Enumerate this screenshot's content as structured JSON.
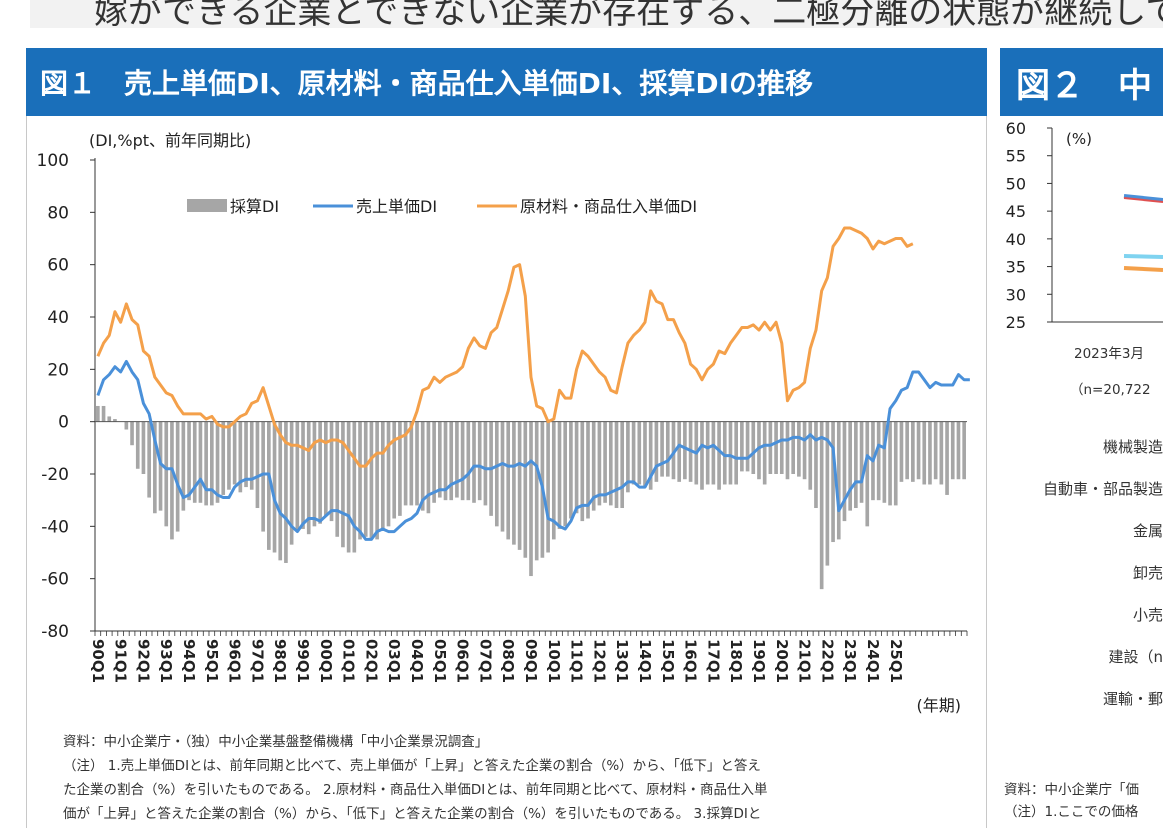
{
  "page": {
    "top_text": "嫁ができる企業とできない企業が存在する、二極分離の状態が継続して",
    "fig1_title": "図１　売上単価DI、原材料・商品仕入単価DI、採算DIの推移",
    "fig2_title": "図２　中"
  },
  "fig1": {
    "source": "資料：中小企業庁・（独）中小企業基盤整備機構「中小企業景況調査」",
    "note_lines": [
      "（注） 1.売上単価DIとは、前年同期と比べて、売上単価が「上昇」と答えた企業の割合（%）から、「低下」と答え",
      "た企業の割合（%）を引いたものである。 2.原材料・商品仕入単価DIとは、前年同期と比べて、原材料・商品仕入単",
      "価が「上昇」と答えた企業の割合（%）から、「低下」と答えた企業の割合（%）を引いたものである。 3.採算DIと"
    ]
  },
  "fig2": {
    "unit": "(%)",
    "y_ticks": [
      "60",
      "55",
      "50",
      "45",
      "40",
      "35",
      "30",
      "25"
    ],
    "x_label": "2023年3月",
    "n_label": "（n=20,722",
    "categories": [
      "機械製造",
      "自動車・部品製造",
      "金属",
      "卸売",
      "小売",
      "建設（n",
      "運輸・郵"
    ],
    "source": "資料：中小企業庁「価",
    "note": "（注）1.ここでの価格"
  },
  "colors": {
    "header": "#1a6fba",
    "saisan": "#a6a6a6",
    "uriage": "#4a90d9",
    "genzairyo": "#f4a04a"
  },
  "chart_data": {
    "type": "bar+line",
    "ylabel": "(DI,%pt、前年同期比)",
    "xlabel": "(年期)",
    "ylim": [
      -80,
      100
    ],
    "yticks": [
      100,
      80,
      60,
      40,
      20,
      0,
      -20,
      -40,
      -60,
      -80
    ],
    "x_start": "1990Q1",
    "x_tick_labels": [
      "90Q1",
      "91Q1",
      "92Q1",
      "93Q1",
      "94Q1",
      "95Q1",
      "96Q1",
      "97Q1",
      "98Q1",
      "99Q1",
      "00Q1",
      "01Q1",
      "02Q1",
      "03Q1",
      "04Q1",
      "05Q1",
      "06Q1",
      "07Q1",
      "08Q1",
      "09Q1",
      "10Q1",
      "11Q1",
      "12Q1",
      "13Q1",
      "14Q1",
      "15Q1",
      "16Q1",
      "17Q1",
      "18Q1",
      "19Q1",
      "20Q1",
      "21Q1",
      "22Q1",
      "23Q1",
      "24Q1",
      "25Q1"
    ],
    "legend_position": "top-center",
    "series": [
      {
        "name": "採算DI",
        "type": "bar",
        "values": [
          6,
          6,
          2,
          1,
          0,
          -3,
          -9,
          -18,
          -20,
          -29,
          -35,
          -34,
          -40,
          -45,
          -42,
          -34,
          -30,
          -31,
          -31,
          -32,
          -32,
          -31,
          -28,
          -26,
          -24,
          -27,
          -25,
          -26,
          -33,
          -42,
          -49,
          -50,
          -53,
          -54,
          -47,
          -42,
          -41,
          -43,
          -40,
          -39,
          -36,
          -38,
          -44,
          -48,
          -50,
          -50,
          -45,
          -44,
          -45,
          -45,
          -41,
          -40,
          -37,
          -36,
          -32,
          -32,
          -32,
          -34,
          -35,
          -31,
          -29,
          -30,
          -30,
          -29,
          -30,
          -30,
          -31,
          -30,
          -32,
          -36,
          -40,
          -42,
          -45,
          -47,
          -49,
          -52,
          -59,
          -53,
          -52,
          -50,
          -45,
          -41,
          -40,
          -37,
          -35,
          -38,
          -37,
          -34,
          -32,
          -31,
          -32,
          -33,
          -33,
          -27,
          -24,
          -24,
          -25,
          -26,
          -23,
          -21,
          -21,
          -22,
          -23,
          -22,
          -23,
          -24,
          -26,
          -24,
          -24,
          -26,
          -24,
          -24,
          -24,
          -19,
          -19,
          -20,
          -22,
          -24,
          -20,
          -20,
          -20,
          -22,
          -20,
          -21,
          -22,
          -26,
          -33,
          -64,
          -55,
          -46,
          -45,
          -38,
          -34,
          -33,
          -31,
          -40,
          -30,
          -30,
          -31,
          -32,
          -32,
          -23,
          -22,
          -23,
          -22,
          -24,
          -24,
          -22,
          -24,
          -28,
          -22,
          -22,
          -22
        ]
      },
      {
        "name": "売上単価DI",
        "type": "line",
        "values": [
          10,
          16,
          18,
          21,
          19,
          23,
          19,
          16,
          7,
          3,
          -7,
          -16,
          -18,
          -18,
          -24,
          -29,
          -28,
          -25,
          -22,
          -26,
          -26,
          -28,
          -29,
          -29,
          -25,
          -23,
          -22,
          -22,
          -21,
          -20,
          -20,
          -30,
          -35,
          -37,
          -40,
          -42,
          -39,
          -37,
          -37,
          -38,
          -36,
          -34,
          -34,
          -35,
          -36,
          -40,
          -42,
          -45,
          -45,
          -42,
          -41,
          -42,
          -42,
          -40,
          -38,
          -37,
          -35,
          -30,
          -28,
          -27,
          -26,
          -26,
          -24,
          -23,
          -22,
          -20,
          -17,
          -17,
          -18,
          -18,
          -17,
          -16,
          -17,
          -17,
          -16,
          -17,
          -15,
          -17,
          -25,
          -37,
          -38,
          -40,
          -41,
          -38,
          -33,
          -32,
          -32,
          -29,
          -28,
          -28,
          -27,
          -26,
          -25,
          -23,
          -23,
          -25,
          -25,
          -21,
          -17,
          -16,
          -15,
          -12,
          -9,
          -10,
          -11,
          -12,
          -9,
          -10,
          -9,
          -11,
          -13,
          -13,
          -14,
          -14,
          -14,
          -12,
          -10,
          -9,
          -9,
          -8,
          -7,
          -7,
          -6,
          -6,
          -7,
          -5,
          -7,
          -6,
          -7,
          -10,
          -34,
          -30,
          -26,
          -23,
          -23,
          -13,
          -15,
          -9,
          -10,
          5,
          8,
          12,
          13,
          19,
          19,
          16,
          13,
          15,
          14,
          14,
          14,
          18,
          16,
          16
        ]
      },
      {
        "name": "原材料・商品仕入単価DI",
        "type": "line",
        "values": [
          25,
          30,
          33,
          42,
          38,
          45,
          39,
          37,
          27,
          25,
          17,
          14,
          11,
          10,
          6,
          3,
          3,
          3,
          3,
          1,
          2,
          -1,
          -2,
          -2,
          0,
          2,
          3,
          7,
          8,
          13,
          6,
          -1,
          -5,
          -8,
          -9,
          -9,
          -10,
          -11,
          -8,
          -7,
          -8,
          -7,
          -7,
          -8,
          -11,
          -14,
          -17,
          -17,
          -14,
          -12,
          -12,
          -9,
          -7,
          -6,
          -5,
          -2,
          4,
          12,
          13,
          17,
          15,
          17,
          18,
          19,
          21,
          28,
          32,
          29,
          28,
          34,
          36,
          43,
          50,
          59,
          60,
          48,
          17,
          6,
          5,
          0,
          1,
          12,
          9,
          9,
          20,
          27,
          25,
          22,
          19,
          17,
          12,
          11,
          21,
          30,
          33,
          35,
          38,
          50,
          46,
          45,
          39,
          39,
          34,
          30,
          22,
          20,
          16,
          20,
          22,
          27,
          26,
          30,
          33,
          36,
          36,
          37,
          35,
          38,
          35,
          38,
          30,
          8,
          12,
          13,
          15,
          28,
          35,
          50,
          55,
          67,
          70,
          74,
          74,
          73,
          72,
          70,
          66,
          69,
          68,
          69,
          70,
          70,
          67,
          68
        ]
      }
    ]
  }
}
